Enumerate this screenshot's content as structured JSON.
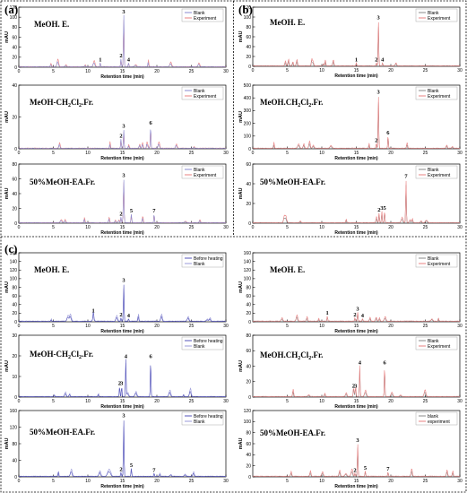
{
  "figure": {
    "panel_labels": [
      "(a)",
      "(b)",
      "(c)"
    ]
  },
  "colors": {
    "blank_a": "#8a8ad0",
    "experiment": "#e88080",
    "blank_b": "#888888",
    "before_heating": "#5555bb",
    "blank_c": "#9a9ad8"
  },
  "chart_data": [
    {
      "id": "a1",
      "type": "line",
      "title": "MeOH. E.",
      "xlabel": "Retention time (min)",
      "ylabel": "mAU",
      "xlim": [
        0,
        30
      ],
      "ylim": [
        0,
        120
      ],
      "xticks": [
        0,
        5,
        10,
        15,
        20,
        25,
        30
      ],
      "yticks": [
        0,
        20,
        40,
        60,
        80,
        100,
        120
      ],
      "legend": [
        "Blank",
        "Experiment"
      ],
      "legend_position": "top-right",
      "peaks": [
        {
          "label": "1",
          "x": 11.8,
          "y": 8
        },
        {
          "label": "2",
          "x": 14.8,
          "y": 16
        },
        {
          "label": "3",
          "x": 15.2,
          "y": 108
        },
        {
          "label": "4",
          "x": 15.9,
          "y": 8
        }
      ]
    },
    {
      "id": "a2",
      "type": "line",
      "title": "MeOH-CH2Cl2.Fr.",
      "xlabel": "Retention time (min)",
      "ylabel": "mAU",
      "xlim": [
        0,
        30
      ],
      "ylim": [
        0,
        40
      ],
      "xticks": [
        0,
        5,
        10,
        15,
        20,
        25,
        30
      ],
      "yticks": [
        0,
        20,
        40
      ],
      "legend": [
        "Blank",
        "Experiment"
      ],
      "legend_position": "top-right",
      "peaks": [
        {
          "label": "2",
          "x": 14.8,
          "y": 6
        },
        {
          "label": "3",
          "x": 15.2,
          "y": 12
        },
        {
          "label": "6",
          "x": 19.1,
          "y": 14
        }
      ]
    },
    {
      "id": "a3",
      "type": "line",
      "title": "50%MeOH-EA.Fr.",
      "xlabel": "Retention time (min)",
      "ylabel": "mAU",
      "xlim": [
        0,
        30
      ],
      "ylim": [
        0,
        80
      ],
      "xticks": [
        0,
        5,
        10,
        15,
        20,
        25,
        30
      ],
      "yticks": [
        0,
        20,
        40,
        60,
        80
      ],
      "legend": [
        "Blank",
        "Experiment"
      ],
      "legend_position": "top-right",
      "peaks": [
        {
          "label": "2",
          "x": 14.8,
          "y": 8
        },
        {
          "label": "3",
          "x": 15.2,
          "y": 60
        },
        {
          "label": "5",
          "x": 16.3,
          "y": 12
        },
        {
          "label": "7",
          "x": 19.6,
          "y": 12
        }
      ]
    },
    {
      "id": "b1",
      "type": "line",
      "title": "MeOH. E.",
      "xlabel": "Retention time (min)",
      "ylabel": "mAU",
      "xlim": [
        0,
        30
      ],
      "ylim": [
        0,
        120
      ],
      "xticks": [
        0,
        5,
        10,
        15,
        20,
        25,
        30
      ],
      "yticks": [
        0,
        20,
        40,
        60,
        80,
        100,
        120
      ],
      "legend": [
        "Blank",
        "Experiment"
      ],
      "legend_position": "top-right",
      "peaks": [
        {
          "label": "1",
          "x": 15,
          "y": 6
        },
        {
          "label": "2",
          "x": 17.9,
          "y": 6
        },
        {
          "label": "3",
          "x": 18.2,
          "y": 92
        },
        {
          "label": "4",
          "x": 18.8,
          "y": 6
        }
      ]
    },
    {
      "id": "b2",
      "type": "line",
      "title": "MeOH.CH2Cl2.Fr.",
      "xlabel": "Retention time (min)",
      "ylabel": "mAU",
      "xlim": [
        0,
        30
      ],
      "ylim": [
        0,
        500
      ],
      "xticks": [
        0,
        5,
        10,
        15,
        20,
        25,
        30
      ],
      "yticks": [
        0,
        100,
        200,
        300,
        400,
        500
      ],
      "legend": [
        "Blank",
        "Experiment"
      ],
      "legend_position": "top-right",
      "peaks": [
        {
          "label": "2",
          "x": 17.9,
          "y": 40
        },
        {
          "label": "3",
          "x": 18.2,
          "y": 420
        },
        {
          "label": "6",
          "x": 19.6,
          "y": 100
        }
      ]
    },
    {
      "id": "b3",
      "type": "line",
      "title": "50%MeOH-EA.Fr.",
      "xlabel": "Retention time (min)",
      "ylabel": "mAU",
      "xlim": [
        0,
        30
      ],
      "ylim": [
        0,
        60
      ],
      "xticks": [
        0,
        5,
        10,
        15,
        20,
        25,
        30
      ],
      "yticks": [
        0,
        20,
        40,
        60
      ],
      "legend": [
        "Blank",
        "Experiment"
      ],
      "legend_position": "top-right",
      "peaks": [
        {
          "label": "2",
          "x": 18.3,
          "y": 10
        },
        {
          "label": "3",
          "x": 18.7,
          "y": 12
        },
        {
          "label": "5",
          "x": 19.1,
          "y": 12
        },
        {
          "label": "7",
          "x": 22.2,
          "y": 44
        }
      ]
    },
    {
      "id": "c1",
      "type": "line",
      "title": "MeOH. E.",
      "xlabel": "Retention time (min)",
      "ylabel": "mAU",
      "xlim": [
        0,
        30
      ],
      "ylim": [
        0,
        160
      ],
      "xticks": [
        0,
        5,
        10,
        15,
        20,
        25,
        30
      ],
      "yticks": [
        0,
        20,
        40,
        60,
        80,
        100,
        120,
        140,
        160
      ],
      "legend": [
        "Before heating",
        "Blank"
      ],
      "legend_position": "top-right",
      "peaks": [
        {
          "label": "1",
          "x": 10.8,
          "y": 18
        },
        {
          "label": "2",
          "x": 14.8,
          "y": 8
        },
        {
          "label": "3",
          "x": 15.2,
          "y": 88
        },
        {
          "label": "4",
          "x": 15.9,
          "y": 6
        }
      ]
    },
    {
      "id": "c2",
      "type": "line",
      "title": "MeOH-CH2Cl2.Fr.",
      "xlabel": "Retention time (min)",
      "ylabel": "mAU",
      "xlim": [
        0,
        30
      ],
      "ylim": [
        0,
        30
      ],
      "xticks": [
        0,
        5,
        10,
        15,
        20,
        25,
        30
      ],
      "yticks": [
        0,
        10,
        20,
        30
      ],
      "legend": [
        "Before heating",
        "Blank"
      ],
      "legend_position": "top-right",
      "peaks": [
        {
          "label": "2",
          "x": 14.6,
          "y": 5
        },
        {
          "label": "3",
          "x": 14.9,
          "y": 5
        },
        {
          "label": "4",
          "x": 15.5,
          "y": 18
        },
        {
          "label": "6",
          "x": 19.1,
          "y": 18
        }
      ]
    },
    {
      "id": "c3",
      "type": "line",
      "title": "50%MeOH-EA.Fr.",
      "xlabel": "Retention time (min)",
      "ylabel": "mAU",
      "xlim": [
        0,
        30
      ],
      "ylim": [
        0,
        160
      ],
      "xticks": [
        0,
        5,
        10,
        15,
        20,
        25,
        30
      ],
      "yticks": [
        0,
        40,
        80,
        120,
        160
      ],
      "legend": [
        "Before heating",
        "Blank"
      ],
      "legend_position": "top-right",
      "peaks": [
        {
          "label": "2",
          "x": 14.8,
          "y": 10
        },
        {
          "label": "3",
          "x": 15.2,
          "y": 140
        },
        {
          "label": "5",
          "x": 16.3,
          "y": 20
        },
        {
          "label": "7",
          "x": 19.6,
          "y": 8
        }
      ]
    },
    {
      "id": "d1",
      "type": "line",
      "title": "MeOH. E.",
      "xlabel": "Retention time (min)",
      "ylabel": "mAU",
      "xlim": [
        0,
        30
      ],
      "ylim": [
        0,
        160
      ],
      "xticks": [
        5,
        10,
        15,
        20,
        25,
        30
      ],
      "yticks": [
        0,
        20,
        40,
        60,
        80,
        100,
        120,
        140,
        160
      ],
      "legend": [
        "Blank",
        "Experiment"
      ],
      "legend_position": "top-right",
      "peaks": [
        {
          "label": "1",
          "x": 10.8,
          "y": 12
        },
        {
          "label": "2",
          "x": 14.8,
          "y": 8
        },
        {
          "label": "3",
          "x": 15.2,
          "y": 22
        },
        {
          "label": "4",
          "x": 15.9,
          "y": 6
        }
      ]
    },
    {
      "id": "d2",
      "type": "line",
      "title": "MeOH.CH2Cl2.Fr.",
      "xlabel": "Retention time (min)",
      "ylabel": "mAU",
      "xlim": [
        0,
        30
      ],
      "ylim": [
        0,
        80
      ],
      "xticks": [
        5,
        10,
        15,
        20,
        25,
        30
      ],
      "yticks": [
        0,
        20,
        40,
        60,
        80
      ],
      "legend": [
        "Blank",
        "Experiment"
      ],
      "legend_position": "top-right",
      "peaks": [
        {
          "label": "2",
          "x": 14.6,
          "y": 10
        },
        {
          "label": "3",
          "x": 14.9,
          "y": 10
        },
        {
          "label": "4",
          "x": 15.5,
          "y": 40
        },
        {
          "label": "6",
          "x": 19.1,
          "y": 40
        }
      ]
    },
    {
      "id": "d3",
      "type": "line",
      "title": "50%MeOH-EA.Fr.",
      "xlabel": "Retention time (min)",
      "ylabel": "mAU",
      "xlim": [
        0,
        30
      ],
      "ylim": [
        0,
        120
      ],
      "xticks": [
        5,
        10,
        15,
        20,
        25,
        30
      ],
      "yticks": [
        0,
        20,
        40,
        60,
        80,
        100,
        120
      ],
      "legend": [
        "blank",
        "experiment"
      ],
      "legend_position": "top-right",
      "peaks": [
        {
          "label": "2",
          "x": 14.8,
          "y": 6
        },
        {
          "label": "3",
          "x": 15.2,
          "y": 60
        },
        {
          "label": "5",
          "x": 16.3,
          "y": 10
        },
        {
          "label": "7",
          "x": 19.6,
          "y": 8
        }
      ]
    }
  ]
}
